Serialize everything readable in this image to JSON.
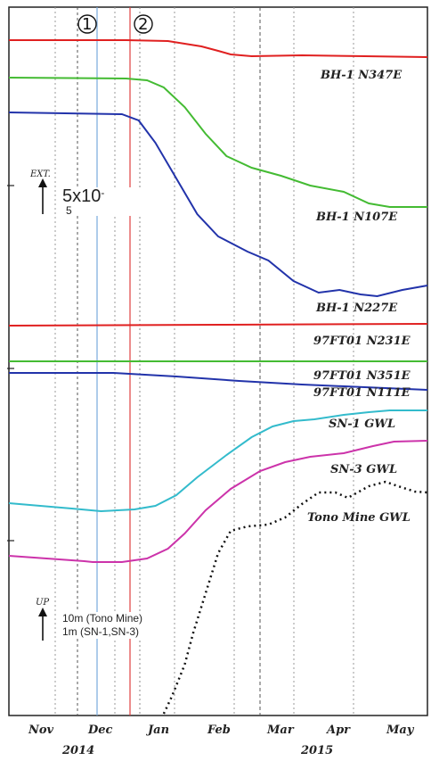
{
  "chart_data": {
    "type": "line",
    "x_months": [
      "Nov",
      "Dec",
      "Jan",
      "Feb",
      "Mar",
      "Apr",
      "May"
    ],
    "x_years": [
      "2014",
      "2015"
    ],
    "event_markers": [
      "①",
      "②"
    ],
    "strain_axis_label": "EXT.",
    "strain_scale_value": "5x10",
    "strain_scale_exponent": "-",
    "strain_scale_subscript": "5",
    "water_axis_label": "UP",
    "water_scale_line1": "10m (Tono Mine)",
    "water_scale_line2": "1m (SN-1,SN-3)",
    "series": [
      {
        "name": "BH-1 N347E",
        "color": "#e02020",
        "points": [
          [
            0,
            45
          ],
          [
            0.28,
            45
          ],
          [
            0.38,
            46
          ],
          [
            0.46,
            52
          ],
          [
            0.5,
            57
          ],
          [
            0.53,
            61
          ],
          [
            0.58,
            63
          ],
          [
            0.7,
            62
          ],
          [
            0.85,
            63
          ],
          [
            1,
            64
          ]
        ]
      },
      {
        "name": "BH-1 N107E",
        "color": "#44bb33",
        "points": [
          [
            0,
            87
          ],
          [
            0.28,
            88
          ],
          [
            0.33,
            90
          ],
          [
            0.37,
            98
          ],
          [
            0.42,
            120
          ],
          [
            0.47,
            150
          ],
          [
            0.52,
            175
          ],
          [
            0.58,
            188
          ],
          [
            0.65,
            197
          ],
          [
            0.72,
            208
          ],
          [
            0.8,
            215
          ],
          [
            0.86,
            228
          ],
          [
            0.91,
            232
          ],
          [
            1,
            232
          ]
        ]
      },
      {
        "name": "BH-1 N227E",
        "color": "#2233aa",
        "points": [
          [
            0,
            126
          ],
          [
            0.27,
            128
          ],
          [
            0.31,
            135
          ],
          [
            0.35,
            160
          ],
          [
            0.4,
            200
          ],
          [
            0.45,
            240
          ],
          [
            0.5,
            265
          ],
          [
            0.57,
            282
          ],
          [
            0.62,
            292
          ],
          [
            0.68,
            315
          ],
          [
            0.74,
            328
          ],
          [
            0.79,
            325
          ],
          [
            0.84,
            330
          ],
          [
            0.88,
            332
          ],
          [
            0.94,
            325
          ],
          [
            1,
            320
          ]
        ]
      },
      {
        "name": "97FT01 N231E",
        "color": "#e02020",
        "points": [
          [
            0,
            365
          ],
          [
            0.5,
            364
          ],
          [
            1,
            363
          ]
        ]
      },
      {
        "name": "97FT01 N351E",
        "color": "#44bb33",
        "points": [
          [
            0,
            405
          ],
          [
            1,
            405
          ]
        ]
      },
      {
        "name": "97FT01 N111E",
        "color": "#2233aa",
        "points": [
          [
            0,
            418
          ],
          [
            0.25,
            418
          ],
          [
            0.4,
            422
          ],
          [
            0.55,
            427
          ],
          [
            0.7,
            431
          ],
          [
            0.85,
            434
          ],
          [
            1,
            437
          ]
        ]
      },
      {
        "name": "SN-1 GWL",
        "color": "#33bbcc",
        "points": [
          [
            0,
            564
          ],
          [
            0.15,
            570
          ],
          [
            0.22,
            573
          ],
          [
            0.3,
            571
          ],
          [
            0.35,
            567
          ],
          [
            0.4,
            555
          ],
          [
            0.45,
            535
          ],
          [
            0.52,
            510
          ],
          [
            0.58,
            490
          ],
          [
            0.63,
            478
          ],
          [
            0.68,
            472
          ],
          [
            0.73,
            470
          ],
          [
            0.8,
            465
          ],
          [
            0.86,
            462
          ],
          [
            0.91,
            460
          ],
          [
            1,
            460
          ]
        ]
      },
      {
        "name": "SN-3 GWL",
        "color": "#cc33aa",
        "points": [
          [
            0,
            623
          ],
          [
            0.15,
            628
          ],
          [
            0.18,
            629
          ],
          [
            0.2,
            630
          ],
          [
            0.27,
            630
          ],
          [
            0.33,
            626
          ],
          [
            0.38,
            615
          ],
          [
            0.42,
            598
          ],
          [
            0.47,
            572
          ],
          [
            0.53,
            548
          ],
          [
            0.6,
            528
          ],
          [
            0.66,
            518
          ],
          [
            0.72,
            512
          ],
          [
            0.8,
            508
          ],
          [
            0.87,
            500
          ],
          [
            0.92,
            495
          ],
          [
            1,
            494
          ]
        ]
      },
      {
        "name": "Tono Mine GWL",
        "color": "#111111",
        "dashed": true,
        "points": [
          [
            0.37,
            800
          ],
          [
            0.39,
            780
          ],
          [
            0.42,
            745
          ],
          [
            0.44,
            710
          ],
          [
            0.46,
            680
          ],
          [
            0.48,
            650
          ],
          [
            0.5,
            620
          ],
          [
            0.53,
            595
          ],
          [
            0.57,
            590
          ],
          [
            0.62,
            588
          ],
          [
            0.66,
            580
          ],
          [
            0.7,
            565
          ],
          [
            0.74,
            552
          ],
          [
            0.78,
            552
          ],
          [
            0.81,
            558
          ],
          [
            0.86,
            545
          ],
          [
            0.9,
            540
          ],
          [
            0.93,
            545
          ],
          [
            0.97,
            551
          ],
          [
            1,
            552
          ]
        ]
      }
    ],
    "series_label_positions_note": ""
  }
}
